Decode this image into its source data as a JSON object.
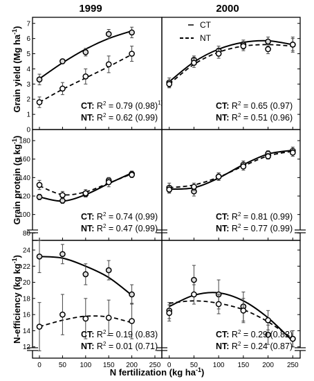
{
  "columns": [
    "1999",
    "2000"
  ],
  "legend": {
    "ct": "CT",
    "nt": "NT"
  },
  "xlabel": "N fertilization",
  "xlabel_unit": "(kg ha",
  "xlabel_unit_exp": "-1",
  "xlabel_unit_close": ")",
  "x_ticks": [
    "0",
    "50",
    "100",
    "150",
    "200",
    "250"
  ],
  "footnote": "1)",
  "chart_data": [
    {
      "type": "line",
      "panel": "grain-yield-1999",
      "ylabel": "Grain yield",
      "ylabel_unit": "(Mg ha",
      "ylabel_unit_exp": "-1",
      "ylabel_unit_close": ")",
      "ylim": [
        0,
        7.4
      ],
      "y_ticks": [
        0,
        1,
        2,
        3,
        4,
        5,
        6,
        7
      ],
      "xlim": [
        -15,
        265
      ],
      "series": [
        {
          "name": "CT",
          "x": [
            0,
            50,
            100,
            150,
            200
          ],
          "y": [
            3.3,
            4.5,
            5.1,
            6.3,
            6.4
          ],
          "err": [
            0.35,
            0.15,
            0.25,
            0.3,
            0.35
          ],
          "fit_x": [
            0,
            50,
            100,
            150,
            200
          ],
          "fit_y": [
            3.35,
            4.4,
            5.3,
            6.0,
            6.5
          ]
        },
        {
          "name": "NT",
          "x": [
            0,
            50,
            100,
            150,
            200
          ],
          "y": [
            1.8,
            2.7,
            3.5,
            4.3,
            5.0
          ],
          "err": [
            0.35,
            0.4,
            0.5,
            0.55,
            0.5
          ],
          "fit_x": [
            0,
            50,
            100,
            150,
            200
          ],
          "fit_y": [
            1.8,
            2.65,
            3.4,
            4.15,
            4.95
          ]
        }
      ],
      "stats": [
        {
          "label": "CT:",
          "r2": "0.79 (0.98)",
          "footnote": "1)"
        },
        {
          "label": "NT:",
          "r2": "0.62 (0.99)"
        }
      ]
    },
    {
      "type": "line",
      "panel": "grain-yield-2000",
      "ylim": [
        0,
        7.4
      ],
      "xlim": [
        -15,
        265
      ],
      "series": [
        {
          "name": "CT",
          "x": [
            0,
            50,
            100,
            150,
            200,
            250
          ],
          "y": [
            3.1,
            4.6,
            5.2,
            5.6,
            5.8,
            5.6
          ],
          "err": [
            0.3,
            0.25,
            0.3,
            0.3,
            0.3,
            0.4
          ],
          "fit_x": [
            0,
            50,
            100,
            150,
            200,
            250
          ],
          "fit_y": [
            3.15,
            4.45,
            5.3,
            5.75,
            5.85,
            5.6
          ]
        },
        {
          "name": "NT",
          "x": [
            0,
            50,
            100,
            150,
            200,
            250
          ],
          "y": [
            3.0,
            4.4,
            5.0,
            5.5,
            5.3,
            5.6
          ],
          "err": [
            0.25,
            0.3,
            0.3,
            0.3,
            0.3,
            0.5
          ],
          "fit_x": [
            0,
            50,
            100,
            150,
            200,
            250
          ],
          "fit_y": [
            3.0,
            4.3,
            5.1,
            5.5,
            5.6,
            5.5
          ]
        }
      ],
      "stats": [
        {
          "label": "CT:",
          "r2": "0.65 (0.97)"
        },
        {
          "label": "NT:",
          "r2": "0.51 (0.96)"
        }
      ]
    },
    {
      "type": "line",
      "panel": "grain-protein-1999",
      "ylabel": "Grain protein",
      "ylabel_unit": "(g kg",
      "ylabel_unit_exp": "-1",
      "ylabel_unit_close": ")",
      "ylim": [
        72,
        192
      ],
      "y_ticks": [
        80,
        100,
        120,
        140,
        160,
        180
      ],
      "xlim": [
        -15,
        265
      ],
      "series": [
        {
          "name": "CT",
          "x": [
            0,
            50,
            100,
            150,
            200
          ],
          "y": [
            119,
            115,
            122,
            137,
            144
          ],
          "err": [
            3,
            3,
            3,
            3,
            3
          ],
          "fit_x": [
            0,
            50,
            100,
            150,
            200
          ],
          "fit_y": [
            119,
            114.5,
            121.5,
            133.5,
            145
          ]
        },
        {
          "name": "NT",
          "x": [
            0,
            50,
            100,
            150,
            200
          ],
          "y": [
            132,
            121,
            123,
            135,
            143
          ],
          "err": [
            5,
            4,
            4,
            5,
            3
          ],
          "fit_x": [
            0,
            50,
            100,
            150,
            200
          ],
          "fit_y": [
            131,
            121.5,
            124.5,
            134,
            144
          ]
        }
      ],
      "stats": [
        {
          "label": "CT:",
          "r2": "0.74 (0.99)"
        },
        {
          "label": "NT:",
          "r2": "0.47 (0.99)"
        }
      ]
    },
    {
      "type": "line",
      "panel": "grain-protein-2000",
      "ylim": [
        72,
        192
      ],
      "xlim": [
        -15,
        265
      ],
      "series": [
        {
          "name": "CT",
          "x": [
            0,
            50,
            100,
            150,
            200,
            250
          ],
          "y": [
            129,
            125,
            141,
            154,
            166,
            169
          ],
          "err": [
            5,
            5,
            4,
            4,
            3,
            4
          ],
          "fit_x": [
            0,
            50,
            100,
            150,
            200,
            250
          ],
          "fit_y": [
            127.5,
            129,
            139.5,
            154,
            165.5,
            169.5
          ]
        },
        {
          "name": "NT",
          "x": [
            0,
            50,
            100,
            150,
            200,
            250
          ],
          "y": [
            127,
            130,
            141,
            152,
            163,
            167
          ],
          "err": [
            4,
            4,
            4,
            4,
            3,
            4
          ],
          "fit_x": [
            0,
            50,
            100,
            150,
            200,
            250
          ],
          "fit_y": [
            129,
            132,
            140.5,
            152.5,
            163.5,
            168.5
          ]
        }
      ],
      "stats": [
        {
          "label": "CT:",
          "r2": "0.81 (0.99)"
        },
        {
          "label": "NT:",
          "r2": "0.77 (0.99)"
        }
      ]
    },
    {
      "type": "line",
      "panel": "n-efficiency-1999",
      "ylabel": "N-efficiency",
      "ylabel_unit": "(kg kg",
      "ylabel_unit_exp": "-1",
      "ylabel_unit_close": ")",
      "ylim": [
        10.6,
        25.2
      ],
      "y_ticks": [
        12,
        14,
        16,
        18,
        20,
        22,
        24
      ],
      "xlim": [
        -15,
        265
      ],
      "series": [
        {
          "name": "CT",
          "x": [
            0,
            50,
            100,
            150,
            200
          ],
          "y": [
            23.2,
            23.5,
            21.0,
            21.5,
            18.5
          ],
          "err": [
            2.0,
            1.2,
            1.3,
            1.2,
            1.2
          ],
          "fit_x": [
            0,
            50,
            100,
            150,
            200
          ],
          "fit_y": [
            23.2,
            23.0,
            22.0,
            20.6,
            18.4
          ]
        },
        {
          "name": "NT",
          "x": [
            0,
            50,
            100,
            150,
            200
          ],
          "y": [
            14.5,
            16.0,
            15.5,
            15.6,
            15.2
          ],
          "err": [
            3.0,
            2.5,
            2.5,
            2.2,
            2.2
          ],
          "fit_x": [
            0,
            50,
            100,
            150,
            200
          ],
          "fit_y": [
            14.5,
            15.3,
            15.8,
            15.7,
            15.0
          ]
        }
      ],
      "stats": [
        {
          "label": "CT:",
          "r2": "0.19 (0.83)"
        },
        {
          "label": "NT:",
          "r2": "0.01 (0.71)"
        }
      ]
    },
    {
      "type": "line",
      "panel": "n-efficiency-2000",
      "ylim": [
        10.6,
        25.2
      ],
      "xlim": [
        -15,
        265
      ],
      "series": [
        {
          "name": "CT",
          "x": [
            0,
            50,
            100,
            150,
            200,
            250
          ],
          "y": [
            16.5,
            20.3,
            18.5,
            17.0,
            13.5,
            13.0
          ],
          "err": [
            1.0,
            1.8,
            1.8,
            1.8,
            1.2,
            1.0
          ],
          "fit_x": [
            0,
            50,
            100,
            150,
            200,
            250
          ],
          "fit_y": [
            17.0,
            18.4,
            18.7,
            17.7,
            15.6,
            12.7
          ]
        },
        {
          "name": "NT",
          "x": [
            0,
            50,
            100,
            150,
            200,
            250
          ],
          "y": [
            16.2,
            18.5,
            17.3,
            16.5,
            15.3,
            13.0
          ],
          "err": [
            1.0,
            1.2,
            1.2,
            1.5,
            1.2,
            1.0
          ],
          "fit_x": [
            0,
            50,
            100,
            150,
            200,
            250
          ],
          "fit_y": [
            17.4,
            17.7,
            17.4,
            16.6,
            15.1,
            13.0
          ]
        }
      ],
      "stats": [
        {
          "label": "CT:",
          "r2": "0.29 (0.82)"
        },
        {
          "label": "NT:",
          "r2": "0.24 (0.87)"
        }
      ]
    }
  ]
}
